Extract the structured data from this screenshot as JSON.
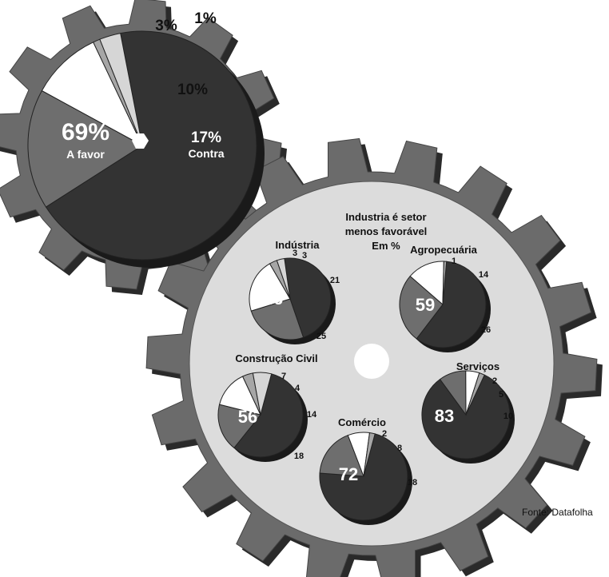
{
  "colors": {
    "gear": "#6b6b6b",
    "gear_shadow": "#2a2a2a",
    "gear_face": "#dcdcdc",
    "slice_dark": "#333333",
    "slice_mid": "#6e6e6e",
    "slice_white": "#ffffff",
    "slice_light": "#d6d6d6",
    "slice_gray": "#a6a6a6"
  },
  "sector_title": [
    "Industria é setor",
    "menos favorável",
    "Em %"
  ],
  "source": "Fonte: Datafolha",
  "chart_data": [
    {
      "type": "pie",
      "id": "overall",
      "slices": [
        {
          "label": "69%",
          "sublabel": "A favor",
          "value": 69,
          "color": "#333333"
        },
        {
          "label": "17%",
          "sublabel": "Contra",
          "value": 17,
          "color": "#6e6e6e"
        },
        {
          "label": "10%",
          "value": 10,
          "color": "#ffffff"
        },
        {
          "label": "1%",
          "value": 1,
          "color": "#a6a6a6"
        },
        {
          "label": "3%",
          "value": 3,
          "color": "#d6d6d6"
        }
      ]
    },
    {
      "type": "pie",
      "id": "industria",
      "title": "Indústria",
      "slices": [
        {
          "label": "46",
          "value": 46,
          "color": "#333333"
        },
        {
          "label": "25",
          "value": 25,
          "color": "#6e6e6e"
        },
        {
          "label": "21",
          "value": 21,
          "color": "#ffffff"
        },
        {
          "label": "3",
          "value": 3,
          "color": "#a6a6a6"
        },
        {
          "label": "3",
          "value": 3,
          "color": "#d6d6d6"
        }
      ]
    },
    {
      "type": "pie",
      "id": "agropecuaria",
      "title": "Agropecuária",
      "slices": [
        {
          "label": "59",
          "value": 59,
          "color": "#333333"
        },
        {
          "label": "26",
          "value": 26,
          "color": "#6e6e6e"
        },
        {
          "label": "14",
          "value": 14,
          "color": "#ffffff"
        },
        {
          "label": "1",
          "value": 1,
          "color": "#a6a6a6"
        }
      ]
    },
    {
      "type": "pie",
      "id": "construcao",
      "title": "Construção Civil",
      "slices": [
        {
          "label": "56",
          "value": 56,
          "color": "#333333"
        },
        {
          "label": "18",
          "value": 18,
          "color": "#6e6e6e"
        },
        {
          "label": "14",
          "value": 14,
          "color": "#ffffff"
        },
        {
          "label": "4",
          "value": 4,
          "color": "#a6a6a6"
        },
        {
          "label": "7",
          "value": 7,
          "color": "#d6d6d6"
        }
      ]
    },
    {
      "type": "pie",
      "id": "servicos",
      "title": "Serviços",
      "slices": [
        {
          "label": "83",
          "value": 83,
          "color": "#333333"
        },
        {
          "label": "10",
          "value": 10,
          "color": "#6e6e6e"
        },
        {
          "label": "5",
          "value": 5,
          "color": "#ffffff"
        },
        {
          "label": "2",
          "value": 2,
          "color": "#a6a6a6"
        }
      ]
    },
    {
      "type": "pie",
      "id": "comercio",
      "title": "Comércio",
      "slices": [
        {
          "label": "72",
          "value": 72,
          "color": "#333333"
        },
        {
          "label": "18",
          "value": 18,
          "color": "#6e6e6e"
        },
        {
          "label": "8",
          "value": 8,
          "color": "#ffffff"
        },
        {
          "label": "2",
          "value": 2,
          "color": "#a6a6a6"
        }
      ]
    }
  ]
}
